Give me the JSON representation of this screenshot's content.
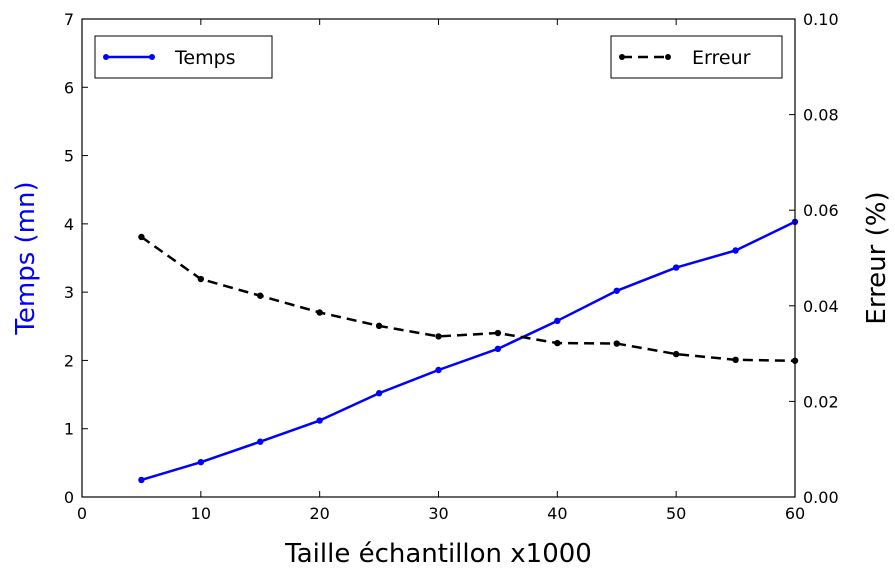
{
  "chart_data": {
    "type": "line",
    "title": "",
    "xlabel": "Taille échantillon x1000",
    "ylabel_left": "Temps (mn)",
    "ylabel_right": "Erreur (%)",
    "xlim": [
      0,
      60
    ],
    "ylim_left": [
      0,
      7
    ],
    "ylim_right": [
      0,
      0.1
    ],
    "x_ticks": [
      "0",
      "10",
      "20",
      "30",
      "40",
      "50",
      "60"
    ],
    "y_left_ticks": [
      "0",
      "1",
      "2",
      "3",
      "4",
      "5",
      "6",
      "7"
    ],
    "y_right_ticks": [
      "0.00",
      "0.02",
      "0.04",
      "0.06",
      "0.08",
      "0.10"
    ],
    "grid": false,
    "series": [
      {
        "name": "Temps",
        "axis": "left",
        "color": "#0000ff",
        "style": "solid",
        "legend_position": "upper-left",
        "x": [
          5,
          10,
          15,
          20,
          25,
          30,
          35,
          40,
          45,
          50,
          55,
          60
        ],
        "values": [
          0.25,
          0.51,
          0.81,
          1.12,
          1.52,
          1.86,
          2.17,
          2.58,
          3.02,
          3.36,
          3.61,
          4.03
        ]
      },
      {
        "name": "Erreur",
        "axis": "right",
        "color": "#000000",
        "style": "dashed",
        "legend_position": "upper-right",
        "x": [
          5,
          10,
          15,
          20,
          25,
          30,
          35,
          40,
          45,
          50,
          55,
          60
        ],
        "values": [
          0.0544,
          0.0456,
          0.0421,
          0.0386,
          0.0358,
          0.0336,
          0.0343,
          0.0322,
          0.0321,
          0.0299,
          0.0287,
          0.0285
        ]
      }
    ]
  }
}
